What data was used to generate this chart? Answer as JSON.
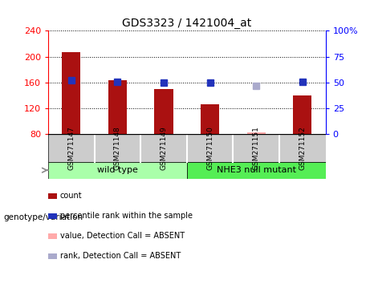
{
  "title": "GDS3323 / 1421004_at",
  "samples": [
    "GSM271147",
    "GSM271148",
    "GSM271149",
    "GSM271150",
    "GSM271151",
    "GSM271152"
  ],
  "count_values": [
    207,
    163,
    150,
    126,
    null,
    140
  ],
  "count_absent": [
    null,
    null,
    null,
    null,
    83,
    null
  ],
  "rank_values": [
    52,
    51,
    50,
    50,
    null,
    51
  ],
  "rank_absent": [
    null,
    null,
    null,
    null,
    47,
    null
  ],
  "ylim_left": [
    80,
    240
  ],
  "ylim_right": [
    0,
    100
  ],
  "yticks_left": [
    80,
    120,
    160,
    200,
    240
  ],
  "yticks_right": [
    0,
    25,
    50,
    75,
    100
  ],
  "bar_color": "#aa1111",
  "bar_absent_color": "#ffaaaa",
  "rank_color": "#2233bb",
  "rank_absent_color": "#aaaacc",
  "groups": [
    {
      "label": "wild type",
      "samples": [
        0,
        1,
        2
      ],
      "color": "#aaffaa"
    },
    {
      "label": "NHE3 null mutant",
      "samples": [
        3,
        4,
        5
      ],
      "color": "#55ee55"
    }
  ],
  "legend_items": [
    {
      "label": "count",
      "color": "#aa1111"
    },
    {
      "label": "percentile rank within the sample",
      "color": "#2233bb"
    },
    {
      "label": "value, Detection Call = ABSENT",
      "color": "#ffaaaa"
    },
    {
      "label": "rank, Detection Call = ABSENT",
      "color": "#aaaacc"
    }
  ],
  "group_label": "genotype/variation",
  "bar_width": 0.4,
  "marker_size": 6,
  "sample_bg": "#cccccc",
  "sample_edge": "#999999"
}
